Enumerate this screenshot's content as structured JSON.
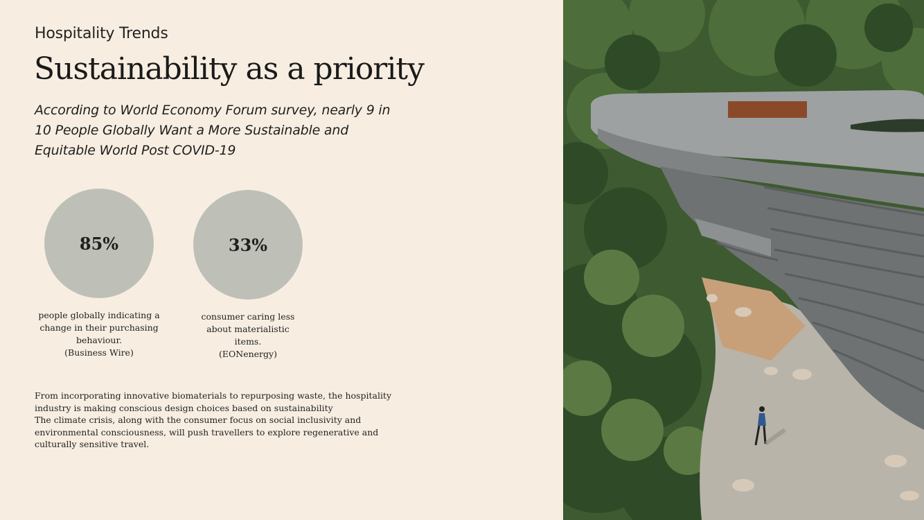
{
  "slide": {
    "kicker": "Hospitality Trends",
    "title": "Sustainability as a priority",
    "subtitle": "According to World Economy Forum survey, nearly 9 in 10 People Globally Want a More Sustainable and Equitable World Post COVID-19"
  },
  "stats": [
    {
      "value": "85%",
      "caption_lines": [
        "people globally indicating a",
        "change in their purchasing",
        "behaviour.",
        "(Business Wire)"
      ],
      "fraction": 0.85
    },
    {
      "value": "33%",
      "caption_lines": [
        "consumer caring less",
        "about materialistic",
        "items.",
        "(EONenergy)"
      ],
      "fraction": 0.33
    }
  ],
  "body": {
    "paragraph_1": "From incorporating innovative biomaterials to repurposing waste, the hospitality industry is making conscious design choices based on sustainability",
    "paragraph_2": "The climate crisis, along with the consumer focus on social inclusivity  and environmental consciousness, will push travellers to explore regenerative and culturally sensitive travel."
  },
  "colors": {
    "background": "#f7eee1",
    "circle": "#bec0b7",
    "text": "#1a1a1a"
  }
}
